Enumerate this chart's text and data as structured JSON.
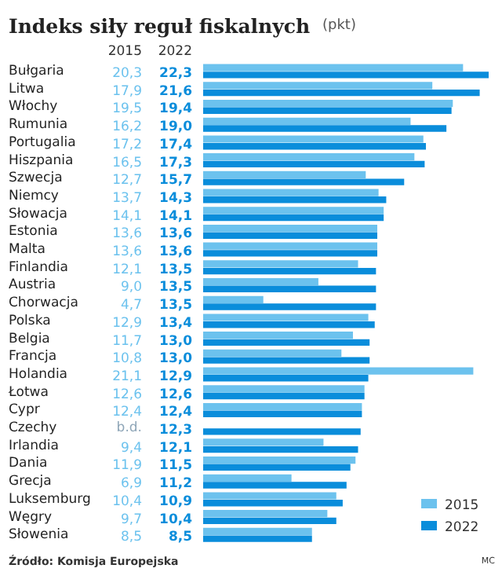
{
  "chart_data": {
    "type": "bar",
    "orientation": "horizontal",
    "title": "Indeks siły reguł fiskalnych",
    "subtitle": "(pkt)",
    "categories": [
      "Bułgaria",
      "Litwa",
      "Włochy",
      "Rumunia",
      "Portugalia",
      "Hiszpania",
      "Szwecja",
      "Niemcy",
      "Słowacja",
      "Estonia",
      "Malta",
      "Finlandia",
      "Austria",
      "Chorwacja",
      "Polska",
      "Belgia",
      "Francja",
      "Holandia",
      "Łotwa",
      "Cypr",
      "Czechy",
      "Irlandia",
      "Dania",
      "Grecja",
      "Luksemburg",
      "Węgry",
      "Słowenia"
    ],
    "series": [
      {
        "name": "2015",
        "color": "#6cc2ee",
        "values": [
          20.3,
          17.9,
          19.5,
          16.2,
          17.2,
          16.5,
          12.7,
          13.7,
          14.1,
          13.6,
          13.6,
          12.1,
          9.0,
          4.7,
          12.9,
          11.7,
          10.8,
          21.1,
          12.6,
          12.4,
          null,
          9.4,
          11.9,
          6.9,
          10.4,
          9.7,
          8.5
        ],
        "value_labels": [
          "20,3",
          "17,9",
          "19,5",
          "16,2",
          "17,2",
          "16,5",
          "12,7",
          "13,7",
          "14,1",
          "13,6",
          "13,6",
          "12,1",
          "9,0",
          "4,7",
          "12,9",
          "11,7",
          "10,8",
          "21,1",
          "12,6",
          "12,4",
          "b.d.",
          "9,4",
          "11,9",
          "6,9",
          "10,4",
          "9,7",
          "8,5"
        ]
      },
      {
        "name": "2022",
        "color": "#0a8ddb",
        "values": [
          22.3,
          21.6,
          19.4,
          19.0,
          17.4,
          17.3,
          15.7,
          14.3,
          14.1,
          13.6,
          13.6,
          13.5,
          13.5,
          13.5,
          13.4,
          13.0,
          13.0,
          12.9,
          12.6,
          12.4,
          12.3,
          12.1,
          11.5,
          11.2,
          10.9,
          10.4,
          8.5
        ],
        "value_labels": [
          "22,3",
          "21,6",
          "19,4",
          "19,0",
          "17,4",
          "17,3",
          "15,7",
          "14,3",
          "14,1",
          "13,6",
          "13,6",
          "13,5",
          "13,5",
          "13,5",
          "13,4",
          "13,0",
          "13,0",
          "12,9",
          "12,6",
          "12,4",
          "12,3",
          "12,1",
          "11,5",
          "11,2",
          "10,9",
          "10,4",
          "8,5"
        ]
      }
    ],
    "legend": "bottom right",
    "annotations": [
      "Źródło: Komisja Europejska",
      "MC"
    ]
  }
}
